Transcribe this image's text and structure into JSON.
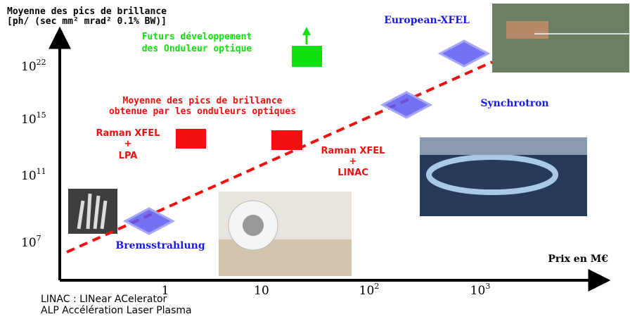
{
  "axis_title": {
    "line1": "Moyenne des pics de brillance",
    "line2": "[ph/ (sec mm² mrad² 0.1% BW)]"
  },
  "x_axis_label": "Prix en M€",
  "y_ticks": [
    {
      "base": "10",
      "exp": "22"
    },
    {
      "base": "10",
      "exp": "15"
    },
    {
      "base": "10",
      "exp": "11"
    },
    {
      "base": "10",
      "exp": "7"
    }
  ],
  "x_ticks": [
    {
      "base": "1",
      "exp": null
    },
    {
      "base": "10",
      "exp": null
    },
    {
      "base": "10",
      "exp": "2"
    },
    {
      "base": "10",
      "exp": "3"
    }
  ],
  "future": {
    "line1": "Futurs développement",
    "line2": "des Onduleur optique"
  },
  "undulator_note": {
    "line1": "Moyenne des pics de brillance",
    "line2": "obtenue par les onduleurs optiques"
  },
  "raman_lpa": {
    "line1": "Raman XFEL",
    "line2": "+",
    "line3": "LPA"
  },
  "raman_linac": {
    "line1": "Raman XFEL",
    "line2": "+",
    "line3": "LINAC"
  },
  "labels": {
    "european_xfel": "European-XFEL",
    "synchrotron": "Synchrotron",
    "bremsstrahlung": "Bremsstrahlung"
  },
  "footnotes": [
    "LINAC : LINear ACelerator",
    "ALP Accélération Laser Plasma"
  ]
}
